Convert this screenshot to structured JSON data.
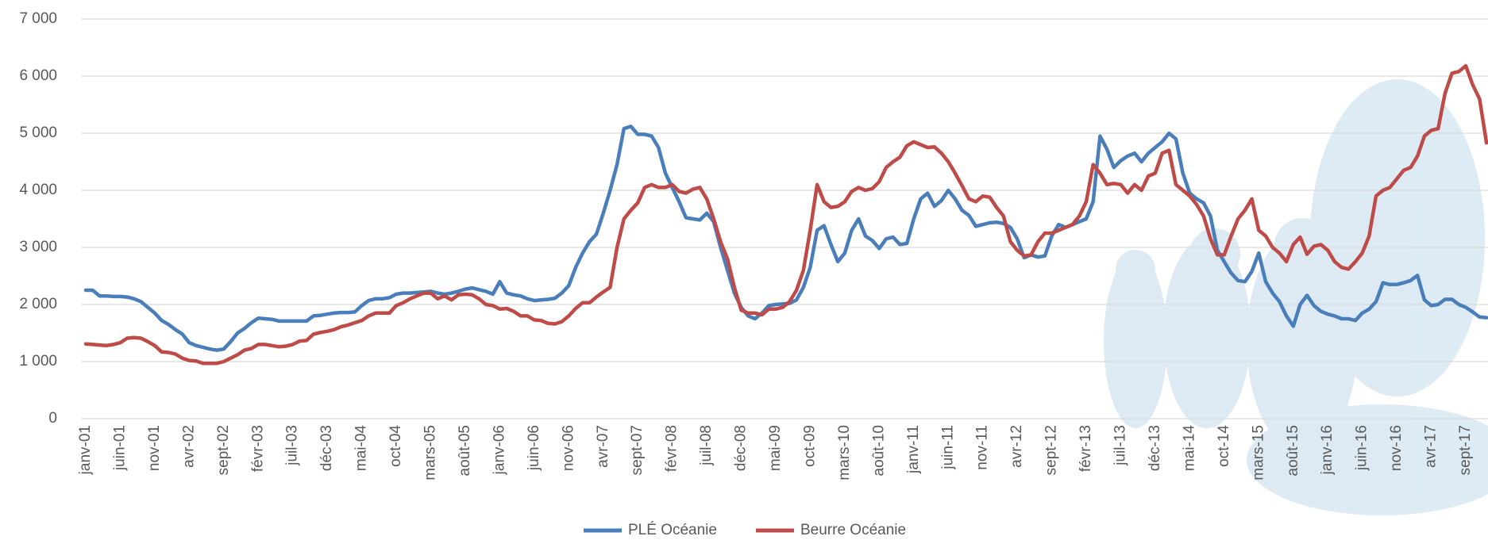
{
  "chart_data": {
    "type": "line",
    "categories": [
      "janv-01",
      null,
      null,
      null,
      null,
      "juin-01",
      null,
      null,
      null,
      null,
      "nov-01",
      null,
      null,
      null,
      null,
      "avr-02",
      null,
      null,
      null,
      null,
      "sept-02",
      null,
      null,
      null,
      null,
      "févr-03",
      null,
      null,
      null,
      null,
      "juil-03",
      null,
      null,
      null,
      null,
      "déc-03",
      null,
      null,
      null,
      null,
      "mai-04",
      null,
      null,
      null,
      null,
      "oct-04",
      null,
      null,
      null,
      null,
      "mars-05",
      null,
      null,
      null,
      null,
      "août-05",
      null,
      null,
      null,
      null,
      "janv-06",
      null,
      null,
      null,
      null,
      "juin-06",
      null,
      null,
      null,
      null,
      "nov-06",
      null,
      null,
      null,
      null,
      "avr-07",
      null,
      null,
      null,
      null,
      "sept-07",
      null,
      null,
      null,
      null,
      "févr-08",
      null,
      null,
      null,
      null,
      "juil-08",
      null,
      null,
      null,
      null,
      "déc-08",
      null,
      null,
      null,
      null,
      "mai-09",
      null,
      null,
      null,
      null,
      "oct-09",
      null,
      null,
      null,
      null,
      "mars-10",
      null,
      null,
      null,
      null,
      "août-10",
      null,
      null,
      null,
      null,
      "janv-11",
      null,
      null,
      null,
      null,
      "juin-11",
      null,
      null,
      null,
      null,
      "nov-11",
      null,
      null,
      null,
      null,
      "avr-12",
      null,
      null,
      null,
      null,
      "sept-12",
      null,
      null,
      null,
      null,
      "févr-13",
      null,
      null,
      null,
      null,
      "juil-13",
      null,
      null,
      null,
      null,
      "déc-13",
      null,
      null,
      null,
      null,
      "mai-14",
      null,
      null,
      null,
      null,
      "oct-14",
      null,
      null,
      null,
      null,
      "mars-15",
      null,
      null,
      null,
      null,
      "août-15",
      null,
      null,
      null,
      null,
      "janv-16",
      null,
      null,
      null,
      null,
      "juin-16",
      null,
      null,
      null,
      null,
      "nov-16",
      null,
      null,
      null,
      null,
      "avr-17",
      null,
      null,
      null,
      null,
      "sept-17",
      null,
      null,
      null
    ],
    "series": [
      {
        "name": "PLÉ Océanie",
        "color": "#4a7ebb",
        "values": [
          2250,
          2250,
          2150,
          2150,
          2140,
          2140,
          2130,
          2100,
          2050,
          1950,
          1850,
          1720,
          1650,
          1560,
          1480,
          1330,
          1280,
          1250,
          1220,
          1200,
          1220,
          1350,
          1500,
          1580,
          1680,
          1760,
          1750,
          1740,
          1710,
          1710,
          1710,
          1710,
          1710,
          1800,
          1810,
          1830,
          1850,
          1860,
          1860,
          1870,
          1980,
          2070,
          2100,
          2100,
          2120,
          2180,
          2200,
          2200,
          2210,
          2220,
          2230,
          2200,
          2180,
          2200,
          2230,
          2270,
          2290,
          2260,
          2230,
          2180,
          2400,
          2200,
          2170,
          2150,
          2100,
          2070,
          2080,
          2090,
          2110,
          2200,
          2330,
          2650,
          2900,
          3100,
          3230,
          3600,
          4000,
          4450,
          5080,
          5120,
          4980,
          4980,
          4950,
          4750,
          4300,
          4050,
          3800,
          3520,
          3500,
          3480,
          3600,
          3450,
          3000,
          2600,
          2200,
          1950,
          1800,
          1750,
          1850,
          1980,
          2000,
          2010,
          2020,
          2080,
          2300,
          2650,
          3300,
          3380,
          3050,
          2750,
          2900,
          3300,
          3500,
          3200,
          3120,
          2980,
          3150,
          3180,
          3050,
          3070,
          3500,
          3850,
          3950,
          3720,
          3820,
          4000,
          3850,
          3650,
          3560,
          3370,
          3400,
          3430,
          3440,
          3420,
          3350,
          3150,
          2820,
          2870,
          2830,
          2850,
          3200,
          3400,
          3350,
          3400,
          3450,
          3500,
          3800,
          4950,
          4720,
          4400,
          4520,
          4600,
          4650,
          4500,
          4650,
          4750,
          4850,
          5000,
          4900,
          4300,
          3950,
          3850,
          3780,
          3550,
          2950,
          2750,
          2550,
          2420,
          2400,
          2580,
          2900,
          2400,
          2200,
          2050,
          1800,
          1620,
          2000,
          2160,
          1980,
          1880,
          1830,
          1800,
          1750,
          1750,
          1720,
          1850,
          1920,
          2050,
          2380,
          2350,
          2350,
          2380,
          2420,
          2510,
          2080,
          1980,
          2000,
          2090,
          2090,
          2000,
          1950,
          1870,
          1780,
          1770
        ]
      },
      {
        "name": "Beurre Océanie",
        "color": "#be4b48",
        "values": [
          1310,
          1300,
          1290,
          1280,
          1300,
          1330,
          1410,
          1420,
          1410,
          1350,
          1280,
          1170,
          1160,
          1130,
          1060,
          1020,
          1010,
          970,
          970,
          970,
          1000,
          1060,
          1120,
          1200,
          1230,
          1300,
          1300,
          1280,
          1260,
          1270,
          1300,
          1360,
          1370,
          1480,
          1510,
          1530,
          1560,
          1610,
          1640,
          1680,
          1720,
          1800,
          1850,
          1850,
          1850,
          1980,
          2030,
          2100,
          2150,
          2200,
          2200,
          2100,
          2150,
          2080,
          2170,
          2180,
          2170,
          2100,
          2000,
          1980,
          1920,
          1930,
          1880,
          1800,
          1800,
          1730,
          1720,
          1670,
          1660,
          1700,
          1800,
          1930,
          2030,
          2030,
          2130,
          2220,
          2300,
          3000,
          3500,
          3650,
          3780,
          4050,
          4100,
          4050,
          4050,
          4100,
          3980,
          3950,
          4020,
          4050,
          3850,
          3500,
          3100,
          2800,
          2300,
          1900,
          1850,
          1850,
          1820,
          1920,
          1920,
          1950,
          2050,
          2250,
          2600,
          3300,
          4100,
          3800,
          3700,
          3720,
          3800,
          3980,
          4050,
          4000,
          4030,
          4150,
          4400,
          4500,
          4580,
          4780,
          4850,
          4800,
          4750,
          4760,
          4650,
          4500,
          4300,
          4080,
          3850,
          3800,
          3900,
          3880,
          3700,
          3550,
          3100,
          2950,
          2850,
          2870,
          3100,
          3250,
          3250,
          3300,
          3350,
          3400,
          3550,
          3800,
          4450,
          4300,
          4100,
          4120,
          4100,
          3950,
          4100,
          4000,
          4250,
          4300,
          4650,
          4700,
          4100,
          4000,
          3900,
          3750,
          3550,
          3150,
          2870,
          2870,
          3200,
          3500,
          3650,
          3850,
          3300,
          3200,
          3000,
          2900,
          2750,
          3050,
          3180,
          2880,
          3020,
          3050,
          2950,
          2750,
          2650,
          2620,
          2750,
          2900,
          3200,
          3900,
          4000,
          4050,
          4200,
          4350,
          4400,
          4600,
          4950,
          5050,
          5080,
          5700,
          6050,
          6080,
          6180,
          5850,
          5600,
          4830
        ]
      }
    ],
    "ylim": [
      0,
      7000
    ],
    "yticks": [
      0,
      {
        "value": 1000,
        "label": "1 000"
      },
      {
        "value": 2000,
        "label": "2 000"
      },
      {
        "value": 3000,
        "label": "3 000"
      },
      {
        "value": 4000,
        "label": "4 000"
      },
      {
        "value": 5000,
        "label": "5 000"
      },
      {
        "value": 6000,
        "label": "6 000"
      },
      {
        "value": 7000,
        "label": "7 000"
      }
    ],
    "grid": true,
    "legend": "bottom"
  }
}
